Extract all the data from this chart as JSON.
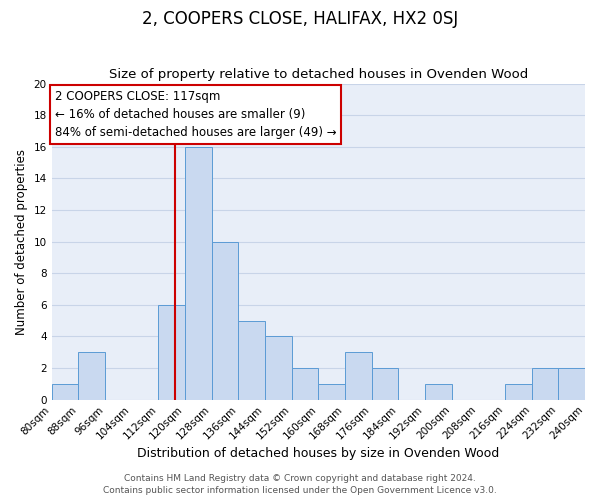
{
  "title": "2, COOPERS CLOSE, HALIFAX, HX2 0SJ",
  "subtitle": "Size of property relative to detached houses in Ovenden Wood",
  "xlabel": "Distribution of detached houses by size in Ovenden Wood",
  "ylabel": "Number of detached properties",
  "bin_edges": [
    80,
    88,
    96,
    104,
    112,
    120,
    128,
    136,
    144,
    152,
    160,
    168,
    176,
    184,
    192,
    200,
    208,
    216,
    224,
    232,
    240
  ],
  "counts": [
    1,
    3,
    0,
    0,
    6,
    16,
    10,
    5,
    4,
    2,
    1,
    3,
    2,
    0,
    1,
    0,
    0,
    1,
    2,
    2
  ],
  "bar_color": "#c9d9f0",
  "bar_edgecolor": "#5b9bd5",
  "red_line_x": 117,
  "ylim": [
    0,
    20
  ],
  "yticks": [
    0,
    2,
    4,
    6,
    8,
    10,
    12,
    14,
    16,
    18,
    20
  ],
  "annotation_title": "2 COOPERS CLOSE: 117sqm",
  "annotation_line1": "← 16% of detached houses are smaller (9)",
  "annotation_line2": "84% of semi-detached houses are larger (49) →",
  "annotation_box_color": "#ffffff",
  "annotation_box_edgecolor": "#cc0000",
  "grid_color": "#c8d4e8",
  "bg_color": "#e8eef8",
  "footer1": "Contains HM Land Registry data © Crown copyright and database right 2024.",
  "footer2": "Contains public sector information licensed under the Open Government Licence v3.0.",
  "title_fontsize": 12,
  "subtitle_fontsize": 9.5,
  "xlabel_fontsize": 9,
  "ylabel_fontsize": 8.5,
  "tick_fontsize": 7.5,
  "annotation_fontsize": 8.5,
  "footer_fontsize": 6.5
}
